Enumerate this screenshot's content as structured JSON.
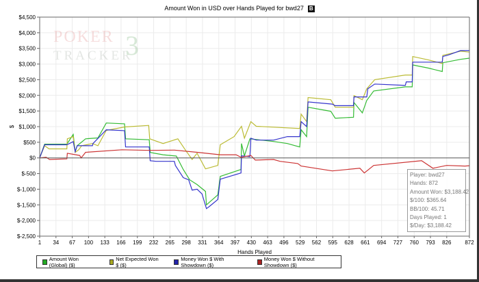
{
  "logo": {
    "line1": "POKER",
    "line2": "TRACKER",
    "version": "3"
  },
  "chart_data": {
    "type": "line",
    "title": "Amount Won in USD over Hands Played for bwd27",
    "title_badge": "B",
    "xlabel": "Hands Played",
    "ylabel": "$",
    "xlim": [
      1,
      872
    ],
    "ylim": [
      -2500,
      4500
    ],
    "grid": true,
    "legend_placement": "bottom",
    "x_ticks": [
      "1",
      "34",
      "67",
      "100",
      "133",
      "166",
      "199",
      "232",
      "265",
      "298",
      "331",
      "364",
      "397",
      "430",
      "463",
      "496",
      "529",
      "562",
      "595",
      "628",
      "661",
      "694",
      "727",
      "760",
      "793",
      "826",
      "872"
    ],
    "y_ticks": [
      "$4,500",
      "$4,000",
      "$3,500",
      "$3,000",
      "$2,500",
      "$2,000",
      "$1,500",
      "$1,000",
      "$500",
      "$0",
      "$-500",
      "$-1,000",
      "$-1,500",
      "$-2,000",
      "$-2,500"
    ],
    "y_tick_values": [
      4500,
      4000,
      3500,
      3000,
      2500,
      2000,
      1500,
      1000,
      500,
      0,
      -500,
      -1000,
      -1500,
      -2000,
      -2500
    ],
    "series": [
      {
        "name": "Amount Won (Global) ($)",
        "color": "#33bb33",
        "points": [
          [
            1,
            0
          ],
          [
            11,
            440
          ],
          [
            56,
            440
          ],
          [
            69,
            750
          ],
          [
            73,
            200
          ],
          [
            77,
            390
          ],
          [
            94,
            610
          ],
          [
            119,
            640
          ],
          [
            136,
            1115
          ],
          [
            173,
            1090
          ],
          [
            175,
            610
          ],
          [
            223,
            580
          ],
          [
            225,
            175
          ],
          [
            251,
            100
          ],
          [
            278,
            60
          ],
          [
            292,
            -370
          ],
          [
            305,
            -700
          ],
          [
            320,
            -850
          ],
          [
            337,
            -1070
          ],
          [
            339,
            -1500
          ],
          [
            362,
            -1180
          ],
          [
            367,
            -590
          ],
          [
            409,
            -370
          ],
          [
            410,
            460
          ],
          [
            416,
            65
          ],
          [
            427,
            610
          ],
          [
            475,
            525
          ],
          [
            503,
            460
          ],
          [
            528,
            350
          ],
          [
            531,
            900
          ],
          [
            542,
            680
          ],
          [
            545,
            1620
          ],
          [
            591,
            1490
          ],
          [
            600,
            1270
          ],
          [
            637,
            1300
          ],
          [
            638,
            1770
          ],
          [
            655,
            1440
          ],
          [
            664,
            1840
          ],
          [
            678,
            2140
          ],
          [
            742,
            2270
          ],
          [
            756,
            2270
          ],
          [
            757,
            2970
          ],
          [
            789,
            2870
          ],
          [
            817,
            2760
          ],
          [
            818,
            3040
          ],
          [
            854,
            3150
          ],
          [
            872,
            3188
          ]
        ]
      },
      {
        "name": "Net Expected Won $ ($)",
        "color": "#bbbb33",
        "points": [
          [
            1,
            0
          ],
          [
            11,
            390
          ],
          [
            20,
            290
          ],
          [
            56,
            290
          ],
          [
            57,
            610
          ],
          [
            69,
            680
          ],
          [
            73,
            175
          ],
          [
            80,
            260
          ],
          [
            86,
            390
          ],
          [
            108,
            460
          ],
          [
            119,
            390
          ],
          [
            136,
            880
          ],
          [
            173,
            990
          ],
          [
            222,
            1040
          ],
          [
            224,
            610
          ],
          [
            251,
            460
          ],
          [
            281,
            610
          ],
          [
            296,
            260
          ],
          [
            310,
            -50
          ],
          [
            320,
            150
          ],
          [
            337,
            -350
          ],
          [
            362,
            -240
          ],
          [
            367,
            420
          ],
          [
            395,
            680
          ],
          [
            410,
            1010
          ],
          [
            416,
            630
          ],
          [
            429,
            1160
          ],
          [
            440,
            1010
          ],
          [
            528,
            940
          ],
          [
            531,
            1400
          ],
          [
            542,
            1160
          ],
          [
            545,
            1930
          ],
          [
            591,
            1860
          ],
          [
            600,
            1620
          ],
          [
            637,
            1620
          ],
          [
            638,
            1990
          ],
          [
            655,
            1860
          ],
          [
            664,
            2210
          ],
          [
            680,
            2500
          ],
          [
            742,
            2650
          ],
          [
            756,
            2650
          ],
          [
            757,
            3240
          ],
          [
            789,
            3130
          ],
          [
            817,
            3020
          ],
          [
            818,
            3280
          ],
          [
            854,
            3410
          ],
          [
            872,
            3380
          ]
        ]
      },
      {
        "name": "Money Won $ With Showdown ($)",
        "color": "#3333cc",
        "points": [
          [
            1,
            0
          ],
          [
            11,
            420
          ],
          [
            56,
            420
          ],
          [
            69,
            520
          ],
          [
            73,
            200
          ],
          [
            77,
            390
          ],
          [
            108,
            390
          ],
          [
            109,
            460
          ],
          [
            136,
            900
          ],
          [
            173,
            870
          ],
          [
            175,
            350
          ],
          [
            223,
            350
          ],
          [
            225,
            -90
          ],
          [
            237,
            -110
          ],
          [
            274,
            -110
          ],
          [
            276,
            -240
          ],
          [
            292,
            -630
          ],
          [
            303,
            -700
          ],
          [
            310,
            -1030
          ],
          [
            320,
            -1000
          ],
          [
            330,
            -1150
          ],
          [
            339,
            -1620
          ],
          [
            345,
            -1550
          ],
          [
            362,
            -1330
          ],
          [
            367,
            -680
          ],
          [
            409,
            -480
          ],
          [
            410,
            65
          ],
          [
            427,
            40
          ],
          [
            429,
            630
          ],
          [
            440,
            570
          ],
          [
            475,
            570
          ],
          [
            503,
            680
          ],
          [
            528,
            680
          ],
          [
            531,
            1160
          ],
          [
            542,
            1000
          ],
          [
            545,
            1790
          ],
          [
            594,
            1720
          ],
          [
            600,
            1670
          ],
          [
            637,
            1670
          ],
          [
            638,
            1950
          ],
          [
            664,
            1950
          ],
          [
            666,
            2210
          ],
          [
            680,
            2360
          ],
          [
            742,
            2320
          ],
          [
            744,
            2430
          ],
          [
            756,
            2430
          ],
          [
            757,
            3060
          ],
          [
            817,
            3060
          ],
          [
            818,
            3240
          ],
          [
            831,
            3300
          ],
          [
            854,
            3430
          ],
          [
            872,
            3430
          ]
        ]
      },
      {
        "name": "Money Won $ Without Showdown ($)",
        "color": "#cc3333",
        "points": [
          [
            1,
            0
          ],
          [
            14,
            20
          ],
          [
            21,
            -50
          ],
          [
            56,
            -30
          ],
          [
            57,
            150
          ],
          [
            82,
            80
          ],
          [
            85,
            0
          ],
          [
            94,
            180
          ],
          [
            168,
            260
          ],
          [
            223,
            240
          ],
          [
            274,
            250
          ],
          [
            320,
            180
          ],
          [
            367,
            100
          ],
          [
            399,
            100
          ],
          [
            409,
            20
          ],
          [
            429,
            80
          ],
          [
            438,
            -70
          ],
          [
            475,
            -50
          ],
          [
            488,
            -110
          ],
          [
            524,
            -180
          ],
          [
            531,
            -260
          ],
          [
            594,
            -415
          ],
          [
            650,
            -330
          ],
          [
            659,
            -480
          ],
          [
            678,
            -240
          ],
          [
            775,
            -90
          ],
          [
            798,
            -330
          ],
          [
            826,
            -240
          ],
          [
            863,
            -260
          ],
          [
            872,
            -250
          ]
        ]
      }
    ]
  },
  "tooltip": {
    "player": "Player: bwd27",
    "hands": "Hands: 872",
    "amount_won": "Amount Won: $3,188.42",
    "per_100": "$/100: $365.64",
    "bb_100": "BB/100: 45.71",
    "days_played": "Days Played: 1",
    "per_day": "$/Day: $3,188.42"
  }
}
